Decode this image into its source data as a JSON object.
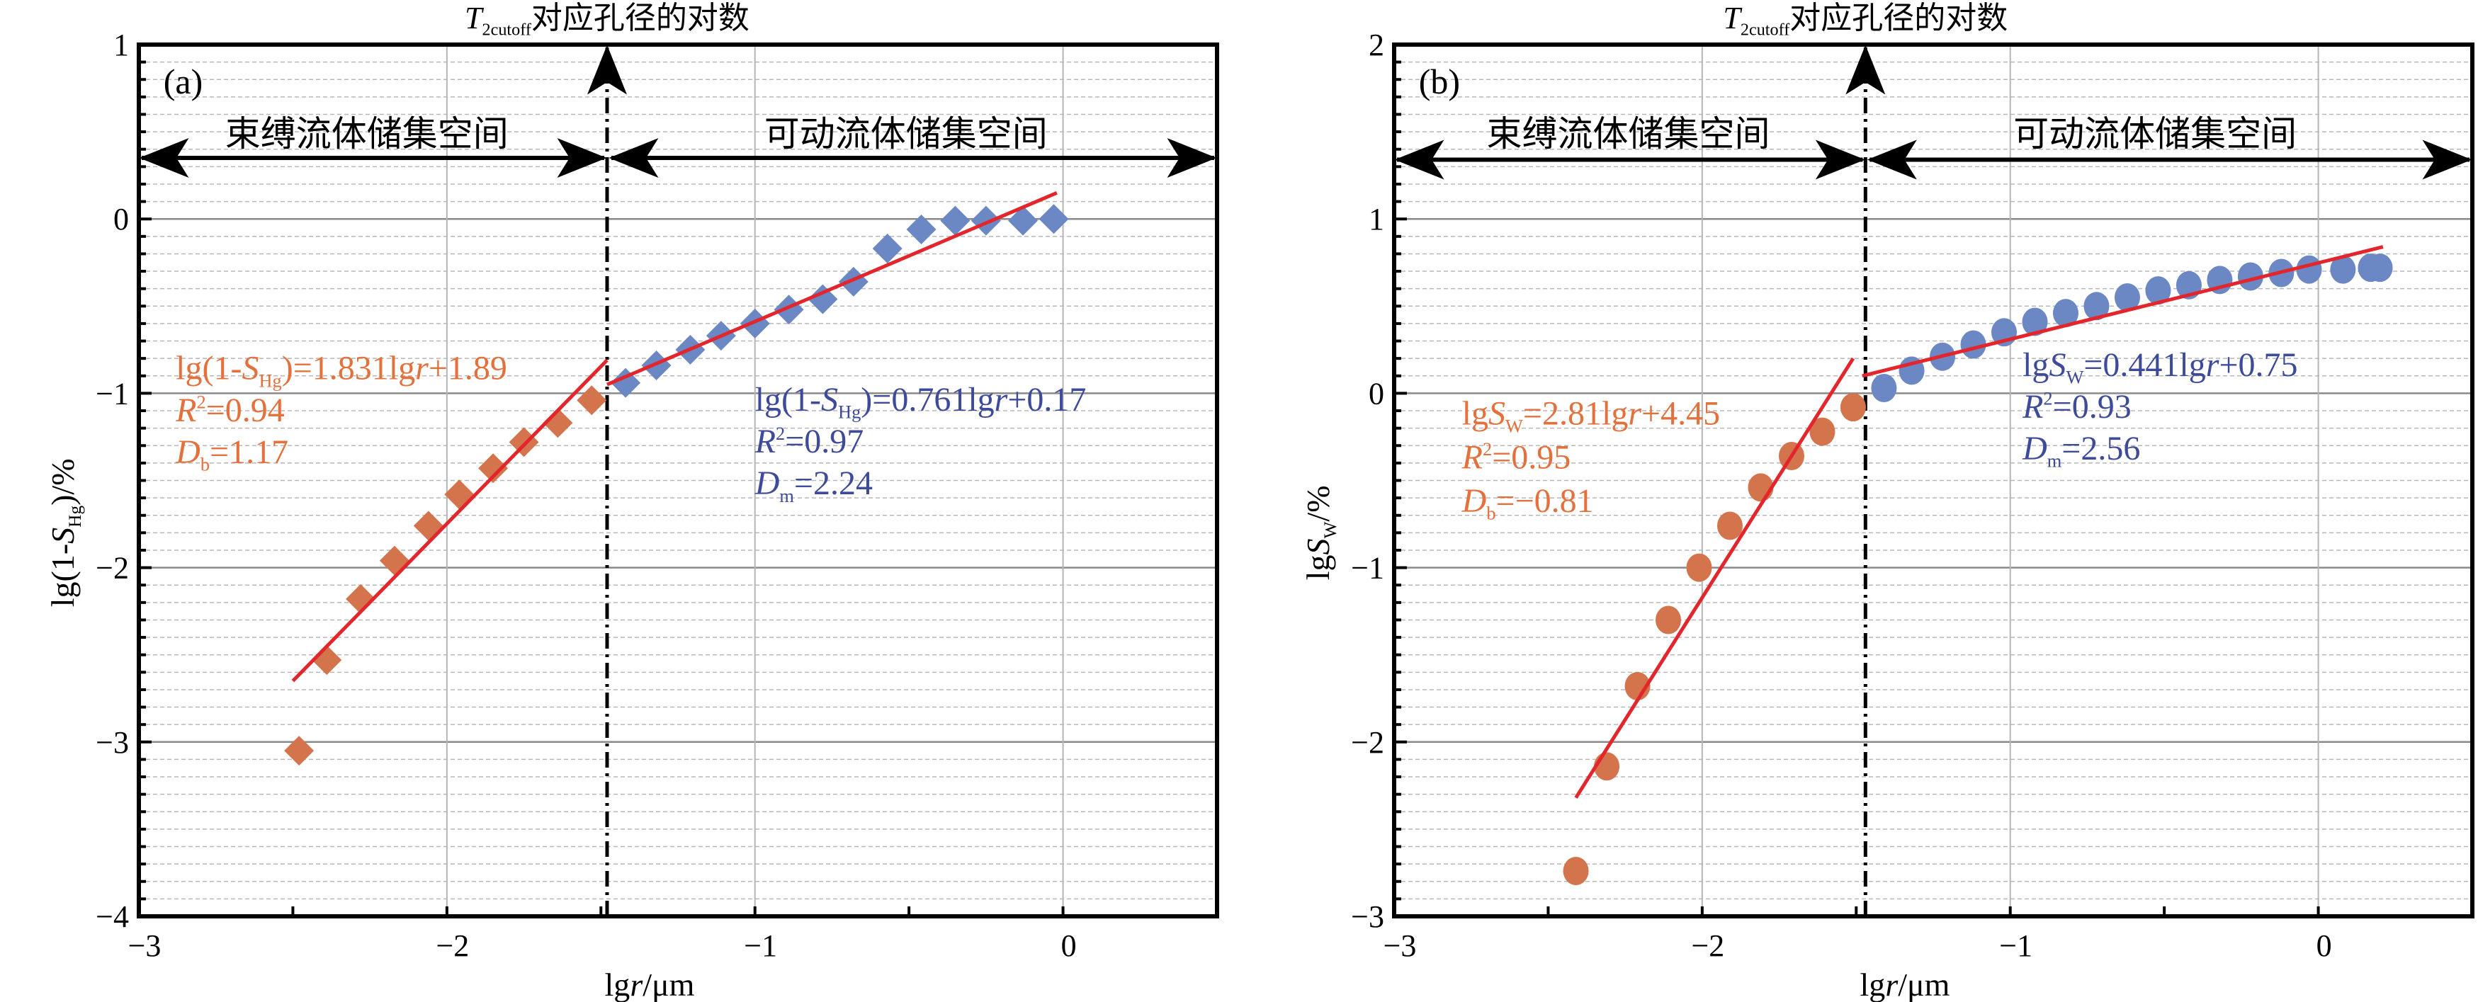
{
  "colors": {
    "bound": "#d4744c",
    "movable": "#6b87c4",
    "fit": "#e3262c",
    "bound_text": "#e4703c",
    "movable_text": "#3d4b9a",
    "axis": "#000000",
    "grid": "#a0a0a0"
  },
  "cutoff_title": {
    "main": "T",
    "sub": "2cutoff",
    "rest": "对应孔径的对数"
  },
  "chart_data": [
    {
      "panel_label": "(a)",
      "type": "scatter",
      "marker": "diamond",
      "xlabel": {
        "pre": "lg",
        "ital": "r",
        "post": "/μm"
      },
      "ylabel": [
        {
          "t": "lg(1-"
        },
        {
          "t": "S",
          "i": true
        },
        {
          "t": "Hg",
          "sub": true
        },
        {
          "t": ")/%"
        }
      ],
      "xlim": [
        -3,
        0.5
      ],
      "ylim": [
        -4,
        1
      ],
      "xticks": [
        -3,
        -2,
        -1,
        0
      ],
      "yticks": [
        -4,
        -3,
        -2,
        -1,
        0,
        1
      ],
      "xtick_labels": [
        "−3",
        "−2",
        "−1",
        "0"
      ],
      "ytick_labels": [
        "−4",
        "−3",
        "−2",
        "−1",
        "0",
        "1"
      ],
      "grid": true,
      "cutoff_x": -1.48,
      "arrow_y": 0.35,
      "regions": {
        "bound": "束缚流体储集空间",
        "movable": "可动流体储集空间"
      },
      "series": [
        {
          "role": "bound",
          "x": [
            -2.48,
            -2.39,
            -2.28,
            -2.17,
            -2.06,
            -1.96,
            -1.85,
            -1.75,
            -1.64,
            -1.53
          ],
          "y": [
            -3.05,
            -2.53,
            -2.18,
            -1.96,
            -1.76,
            -1.58,
            -1.43,
            -1.28,
            -1.17,
            -1.04
          ]
        },
        {
          "role": "movable",
          "x": [
            -1.42,
            -1.32,
            -1.21,
            -1.11,
            -1.0,
            -0.89,
            -0.78,
            -0.68,
            -0.57,
            -0.46,
            -0.35,
            -0.25,
            -0.13,
            -0.03
          ],
          "y": [
            -0.94,
            -0.84,
            -0.75,
            -0.67,
            -0.6,
            -0.52,
            -0.46,
            -0.36,
            -0.17,
            -0.06,
            -0.01,
            -0.01,
            -0.01,
            0.0
          ]
        }
      ],
      "fits": [
        {
          "role": "bound",
          "x": [
            -2.5,
            -1.48
          ],
          "y": [
            -2.65,
            -0.81
          ],
          "equation": [
            {
              "t": "lg(1-"
            },
            {
              "t": "S",
              "i": true
            },
            {
              "t": "Hg",
              "sub": true
            },
            {
              "t": ")=1.831lg"
            },
            {
              "t": "r",
              "i": true
            },
            {
              "t": "+1.89"
            }
          ],
          "r2": [
            {
              "t": "R",
              "i": true
            },
            {
              "t": "2",
              "sup": true
            },
            {
              "t": "=0.94"
            }
          ],
          "d": [
            {
              "t": "D",
              "i": true
            },
            {
              "t": "b",
              "sub": true
            },
            {
              "t": "=1.17"
            }
          ]
        },
        {
          "role": "movable",
          "x": [
            -1.48,
            -0.02
          ],
          "y": [
            -0.95,
            0.15
          ],
          "equation": [
            {
              "t": "lg(1-"
            },
            {
              "t": "S",
              "i": true
            },
            {
              "t": "Hg",
              "sub": true
            },
            {
              "t": ")=0.761lg"
            },
            {
              "t": "r",
              "i": true
            },
            {
              "t": "+0.17"
            }
          ],
          "r2": [
            {
              "t": "R",
              "i": true
            },
            {
              "t": "2",
              "sup": true
            },
            {
              "t": "=0.97"
            }
          ],
          "d": [
            {
              "t": "D",
              "i": true
            },
            {
              "t": "m",
              "sub": true
            },
            {
              "t": "=2.24"
            }
          ]
        }
      ]
    },
    {
      "panel_label": "(b)",
      "type": "scatter",
      "marker": "circle",
      "xlabel": {
        "pre": "lg",
        "ital": "r",
        "post": "/μm"
      },
      "ylabel": [
        {
          "t": "lg"
        },
        {
          "t": "S",
          "i": true
        },
        {
          "t": "W",
          "sub": true
        },
        {
          "t": "/%"
        }
      ],
      "xlim": [
        -3,
        0.5
      ],
      "ylim": [
        -3,
        2
      ],
      "xticks": [
        -3,
        -2,
        -1,
        0
      ],
      "yticks": [
        -3,
        -2,
        -1,
        0,
        1,
        2
      ],
      "xtick_labels": [
        "−3",
        "−2",
        "−1",
        "0"
      ],
      "ytick_labels": [
        "−3",
        "−2",
        "−1",
        "0",
        "1",
        "2"
      ],
      "grid": true,
      "cutoff_x": -1.47,
      "arrow_y": 1.34,
      "regions": {
        "bound": "束缚流体储集空间",
        "movable": "可动流体储集空间"
      },
      "series": [
        {
          "role": "bound",
          "x": [
            -2.41,
            -2.31,
            -2.21,
            -2.11,
            -2.01,
            -1.91,
            -1.81,
            -1.71,
            -1.61,
            -1.51
          ],
          "y": [
            -2.74,
            -2.14,
            -1.68,
            -1.3,
            -1.0,
            -0.76,
            -0.54,
            -0.36,
            -0.22,
            -0.08
          ]
        },
        {
          "role": "movable",
          "x": [
            -1.41,
            -1.32,
            -1.22,
            -1.12,
            -1.02,
            -0.92,
            -0.82,
            -0.72,
            -0.62,
            -0.52,
            -0.42,
            -0.32,
            -0.22,
            -0.12,
            -0.03,
            0.08,
            0.17,
            0.2
          ],
          "y": [
            0.03,
            0.13,
            0.21,
            0.28,
            0.35,
            0.41,
            0.46,
            0.5,
            0.55,
            0.59,
            0.62,
            0.65,
            0.67,
            0.69,
            0.71,
            0.71,
            0.72,
            0.72
          ]
        }
      ],
      "fits": [
        {
          "role": "bound",
          "x": [
            -2.41,
            -1.51
          ],
          "y": [
            -2.32,
            0.2
          ],
          "equation": [
            {
              "t": "lg"
            },
            {
              "t": "S",
              "i": true
            },
            {
              "t": "W",
              "sub": true
            },
            {
              "t": "=2.81lg"
            },
            {
              "t": "r",
              "i": true
            },
            {
              "t": "+4.45"
            }
          ],
          "r2": [
            {
              "t": "R",
              "i": true
            },
            {
              "t": "2",
              "sup": true
            },
            {
              "t": "=0.95"
            }
          ],
          "d": [
            {
              "t": "D",
              "i": true
            },
            {
              "t": "b",
              "sub": true
            },
            {
              "t": "=−0.81"
            }
          ]
        },
        {
          "role": "movable",
          "x": [
            -1.48,
            0.21
          ],
          "y": [
            0.1,
            0.84
          ],
          "equation": [
            {
              "t": "lg"
            },
            {
              "t": "S",
              "i": true
            },
            {
              "t": "W",
              "sub": true
            },
            {
              "t": "=0.441lg"
            },
            {
              "t": "r",
              "i": true
            },
            {
              "t": "+0.75"
            }
          ],
          "r2": [
            {
              "t": "R",
              "i": true
            },
            {
              "t": "2",
              "sup": true
            },
            {
              "t": "=0.93"
            }
          ],
          "d": [
            {
              "t": "D",
              "i": true
            },
            {
              "t": "m",
              "sub": true
            },
            {
              "t": "=2.56"
            }
          ]
        }
      ]
    }
  ]
}
